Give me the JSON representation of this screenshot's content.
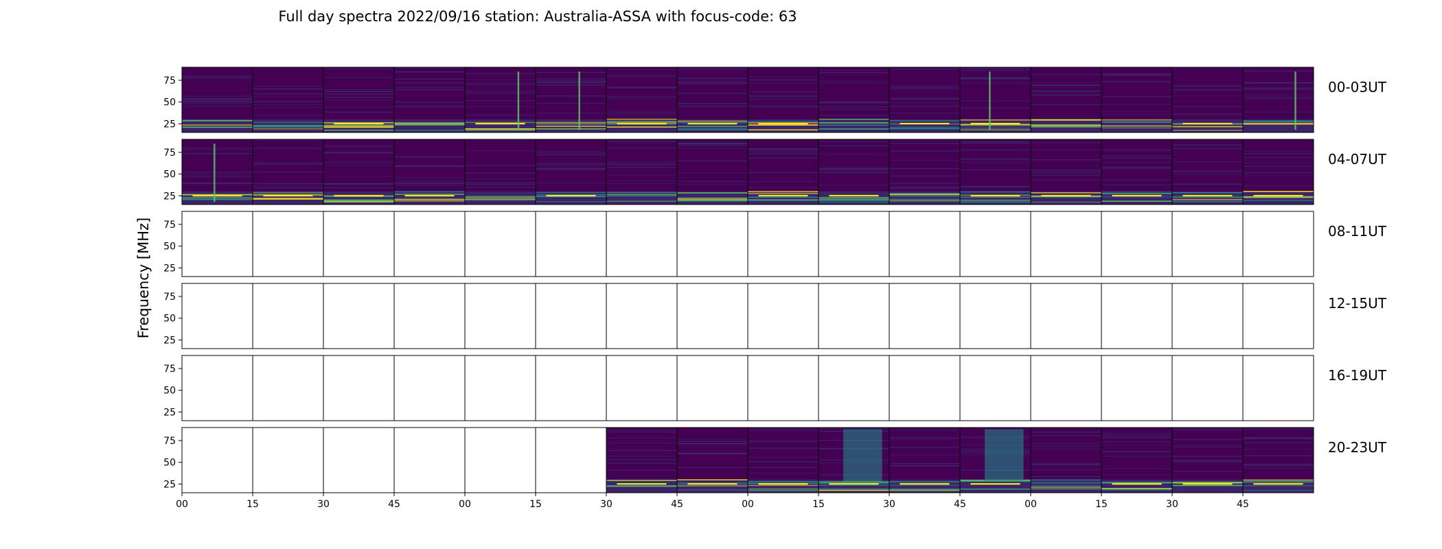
{
  "chart_data": {
    "type": "heatmap",
    "title": "Full day spectra 2022/09/16 station: Australia-ASSA with focus-code: 63",
    "ylabel": "Frequency [MHz]",
    "xlabel": "",
    "y_ticks": [
      "75",
      "50",
      "25"
    ],
    "ylim": [
      15,
      90
    ],
    "x_ticks": [
      "00",
      "15",
      "30",
      "45",
      "00",
      "15",
      "30",
      "45",
      "00",
      "15",
      "30",
      "45",
      "00",
      "15",
      "30",
      "45"
    ],
    "panels_per_row": 16,
    "panel_minutes": 15,
    "colormap": "viridis",
    "rows": [
      {
        "label": "00-03UT",
        "has_data": [
          1,
          1,
          1,
          1,
          1,
          1,
          1,
          1,
          1,
          1,
          1,
          1,
          1,
          1,
          1,
          1
        ],
        "bursts": [
          4,
          5,
          11,
          15
        ]
      },
      {
        "label": "04-07UT",
        "has_data": [
          1,
          1,
          1,
          1,
          1,
          1,
          1,
          1,
          1,
          1,
          1,
          1,
          1,
          1,
          1,
          1
        ],
        "bursts": [
          0
        ]
      },
      {
        "label": "08-11UT",
        "has_data": [
          0,
          0,
          0,
          0,
          0,
          0,
          0,
          0,
          0,
          0,
          0,
          0,
          0,
          0,
          0,
          0
        ],
        "bursts": []
      },
      {
        "label": "12-15UT",
        "has_data": [
          0,
          0,
          0,
          0,
          0,
          0,
          0,
          0,
          0,
          0,
          0,
          0,
          0,
          0,
          0,
          0
        ],
        "bursts": []
      },
      {
        "label": "16-19UT",
        "has_data": [
          0,
          0,
          0,
          0,
          0,
          0,
          0,
          0,
          0,
          0,
          0,
          0,
          0,
          0,
          0,
          0
        ],
        "bursts": []
      },
      {
        "label": "20-23UT",
        "has_data": [
          0,
          0,
          0,
          0,
          0,
          0,
          1,
          1,
          1,
          1,
          1,
          1,
          1,
          1,
          1,
          1
        ],
        "bursts": [
          9,
          11
        ]
      }
    ],
    "colors": {
      "background": "#440154",
      "mid": "#31688e",
      "teal": "#21918c",
      "green": "#5ec962",
      "yellow": "#fde725"
    }
  }
}
